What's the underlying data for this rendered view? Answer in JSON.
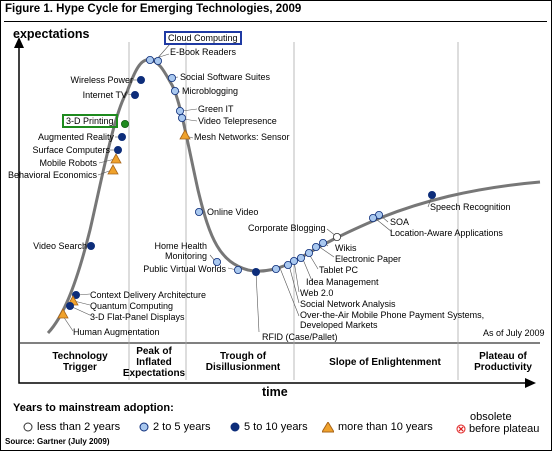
{
  "figure": {
    "title": "Figure 1. Hype Cycle for Emerging Technologies, 2009",
    "y_axis_label": "expectations",
    "x_axis_label": "time",
    "as_of": "As of July 2009",
    "source": "Source: Gartner (July 2009)"
  },
  "phases": [
    "Technology\nTrigger",
    "Peak of\nInflated\nExpectations",
    "Trough of\nDisillusionment",
    "Slope of Enlightenment",
    "Plateau of\nProductivity"
  ],
  "technologies": {
    "cloud_computing": "Cloud Computing",
    "ebook_readers": "E-Book Readers",
    "social_software_suites": "Social Software Suites",
    "microblogging": "Microblogging",
    "wireless_power": "Wireless Power",
    "internet_tv": "Internet TV",
    "green_it": "Green IT",
    "video_telepresence": "Video Telepresence",
    "mesh_networks_sensor": "Mesh Networks: Sensor",
    "printing_3d": "3-D Printing",
    "augmented_reality": "Augmented Reality",
    "surface_computers": "Surface Computers",
    "mobile_robots": "Mobile Robots",
    "behavioral_economics": "Behavioral Economics",
    "online_video": "Online Video",
    "corporate_blogging": "Corporate Blogging",
    "speech_recognition": "Speech Recognition",
    "soa": "SOA",
    "location_aware": "Location-Aware Applications",
    "video_search": "Video Search",
    "home_health_monitoring": "Home Health\nMonitoring",
    "wikis": "Wikis",
    "electronic_paper": "Electronic Paper",
    "public_virtual_worlds": "Public Virtual Worlds",
    "tablet_pc": "Tablet PC",
    "idea_management": "Idea Management",
    "web_20": "Web 2.0",
    "social_network_analysis": "Social Network Analysis",
    "mobile_payment": "Over-the-Air Mobile Phone Payment Systems,\nDeveloped Markets",
    "rfid": "RFID (Case/Pallet)",
    "context_delivery": "Context Delivery Architecture",
    "quantum_computing": "Quantum Computing",
    "flat_panel_3d": "3-D Flat-Panel Displays",
    "human_augmentation": "Human Augmentation"
  },
  "legend": {
    "title": "Years to mainstream adoption:",
    "less_than_2": "less than 2 years",
    "two_to_5": "2 to 5 years",
    "five_to_10": "5 to 10 years",
    "more_than_10": "more than 10 years",
    "obsolete_line1": "obsolete",
    "obsolete_line2": "before plateau"
  },
  "colors": {
    "less_than_2": "#ffffff",
    "two_to_5": "#a9c8ef",
    "five_to_10": "#0d2d7a",
    "more_than_10": "#f0a22c",
    "obsolete": "#e02020",
    "highlight_blue": "#1f3aa3",
    "highlight_green": "#1e8a1e"
  }
}
